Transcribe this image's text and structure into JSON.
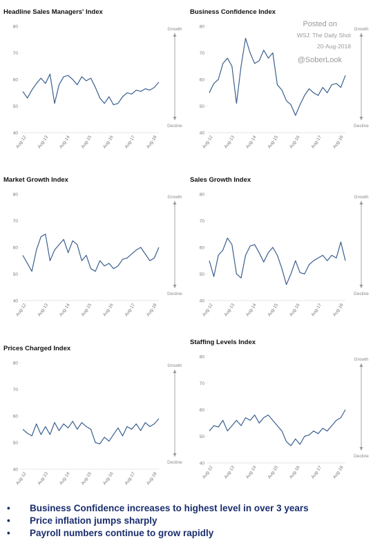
{
  "watermark": {
    "posted": "Posted on",
    "source": "WSJ: The Daily Shot",
    "date": "20-Aug-2018",
    "handle": "@SoberLook"
  },
  "labels": {
    "growth": "Growth",
    "decline": "Decline"
  },
  "bullets": [
    "Business Confidence increases to highest level in over 3 years",
    "Price inflation jumps sharply",
    "Payroll numbers continue to grow rapidly"
  ],
  "chart_data": [
    {
      "type": "line",
      "title": "Headline Sales Managers' Index",
      "ylim": [
        40,
        80
      ],
      "yticks": [
        40,
        50,
        60,
        70,
        80
      ],
      "xticks": [
        "Aug-12",
        "Aug-13",
        "Aug-14",
        "Aug-15",
        "Aug-16",
        "Aug-17",
        "Aug-18"
      ],
      "x_start": "Aug-12",
      "series": [
        {
          "values": [
            55.5,
            53.0,
            56.0,
            58.5,
            60.5,
            58.5,
            62.0,
            51.0,
            58.0,
            61.0,
            61.5,
            60.0,
            58.0,
            61.0,
            59.5,
            60.5,
            57.0,
            53.0,
            51.0,
            53.5,
            50.5,
            51.0,
            53.5,
            55.0,
            54.5,
            56.0,
            55.5,
            56.5,
            56.0,
            57.0,
            59.0
          ]
        }
      ]
    },
    {
      "type": "line",
      "title": "Business Confidence Index",
      "ylim": [
        40,
        80
      ],
      "yticks": [
        40,
        50,
        60,
        70,
        80
      ],
      "xticks": [
        "Aug-12",
        "Aug-13",
        "Aug-14",
        "Aug-15",
        "Aug-16",
        "Aug-17",
        "Aug-18"
      ],
      "x_start": "Aug-12",
      "series": [
        {
          "values": [
            55.0,
            58.5,
            60.0,
            66.0,
            68.0,
            65.0,
            51.0,
            65.0,
            75.5,
            70.0,
            66.0,
            67.0,
            71.0,
            68.0,
            70.0,
            58.0,
            56.0,
            52.0,
            50.5,
            46.5,
            50.5,
            54.0,
            56.5,
            55.0,
            54.0,
            57.0,
            55.0,
            58.0,
            58.5,
            57.0,
            61.5
          ]
        }
      ]
    },
    {
      "type": "line",
      "title": "Market Growth Index",
      "ylim": [
        40,
        80
      ],
      "yticks": [
        40,
        50,
        60,
        70,
        80
      ],
      "xticks": [
        "Aug-12",
        "Aug-13",
        "Aug-14",
        "Aug-15",
        "Aug-16",
        "Aug-17",
        "Aug-18"
      ],
      "x_start": "Aug-12",
      "series": [
        {
          "values": [
            57.0,
            54.0,
            51.0,
            59.0,
            64.0,
            65.0,
            55.0,
            59.0,
            61.0,
            63.0,
            58.0,
            62.5,
            61.0,
            55.0,
            57.0,
            52.0,
            51.0,
            55.0,
            53.0,
            54.0,
            52.0,
            53.0,
            55.5,
            56.0,
            57.5,
            59.0,
            60.0,
            57.5,
            55.0,
            56.0,
            60.0
          ]
        }
      ]
    },
    {
      "type": "line",
      "title": "Sales Growth Index",
      "ylim": [
        40,
        80
      ],
      "yticks": [
        40,
        50,
        60,
        70,
        80
      ],
      "xticks": [
        "Aug-12",
        "Aug-13",
        "Aug-14",
        "Aug-15",
        "Aug-16",
        "Aug-17",
        "Aug-18"
      ],
      "x_start": "Aug-12",
      "series": [
        {
          "values": [
            55.0,
            49.0,
            57.0,
            59.0,
            63.5,
            61.0,
            50.0,
            48.5,
            57.0,
            60.5,
            61.0,
            58.0,
            54.5,
            58.0,
            60.0,
            57.0,
            52.0,
            46.0,
            50.0,
            55.0,
            50.5,
            50.0,
            53.5,
            55.0,
            56.0,
            57.0,
            55.0,
            57.0,
            56.0,
            62.0,
            55.0
          ]
        }
      ]
    },
    {
      "type": "line",
      "title": "Prices Charged Index",
      "ylim": [
        40,
        80
      ],
      "yticks": [
        40,
        50,
        60,
        70,
        80
      ],
      "xticks": [
        "Aug-12",
        "Aug-13",
        "Aug-14",
        "Aug-15",
        "Aug-16",
        "Aug-17",
        "Aug-18"
      ],
      "x_start": "Aug-12",
      "series": [
        {
          "values": [
            55.0,
            53.5,
            52.5,
            57.0,
            53.0,
            56.0,
            53.0,
            57.5,
            54.5,
            57.0,
            55.5,
            58.0,
            55.0,
            57.5,
            56.0,
            55.0,
            50.0,
            49.5,
            52.0,
            50.5,
            53.0,
            55.5,
            52.5,
            56.0,
            55.0,
            57.0,
            54.5,
            57.5,
            56.0,
            57.0,
            59.0
          ]
        }
      ]
    },
    {
      "type": "line",
      "title": "Staffing Levels Index",
      "ylim": [
        40,
        80
      ],
      "yticks": [
        40,
        50,
        60,
        70,
        80
      ],
      "xticks": [
        "Aug-12",
        "Aug-13",
        "Aug-14",
        "Aug-15",
        "Aug-16",
        "Aug-17",
        "Aug-18"
      ],
      "x_start": "Aug-12",
      "series": [
        {
          "values": [
            52.0,
            54.0,
            53.5,
            56.0,
            52.0,
            54.0,
            56.0,
            54.0,
            57.0,
            56.0,
            58.0,
            55.0,
            57.0,
            58.0,
            56.0,
            54.0,
            52.0,
            48.0,
            46.5,
            49.0,
            47.0,
            50.0,
            50.5,
            52.0,
            51.0,
            53.0,
            52.0,
            54.0,
            56.0,
            57.0,
            60.0
          ]
        }
      ]
    }
  ]
}
